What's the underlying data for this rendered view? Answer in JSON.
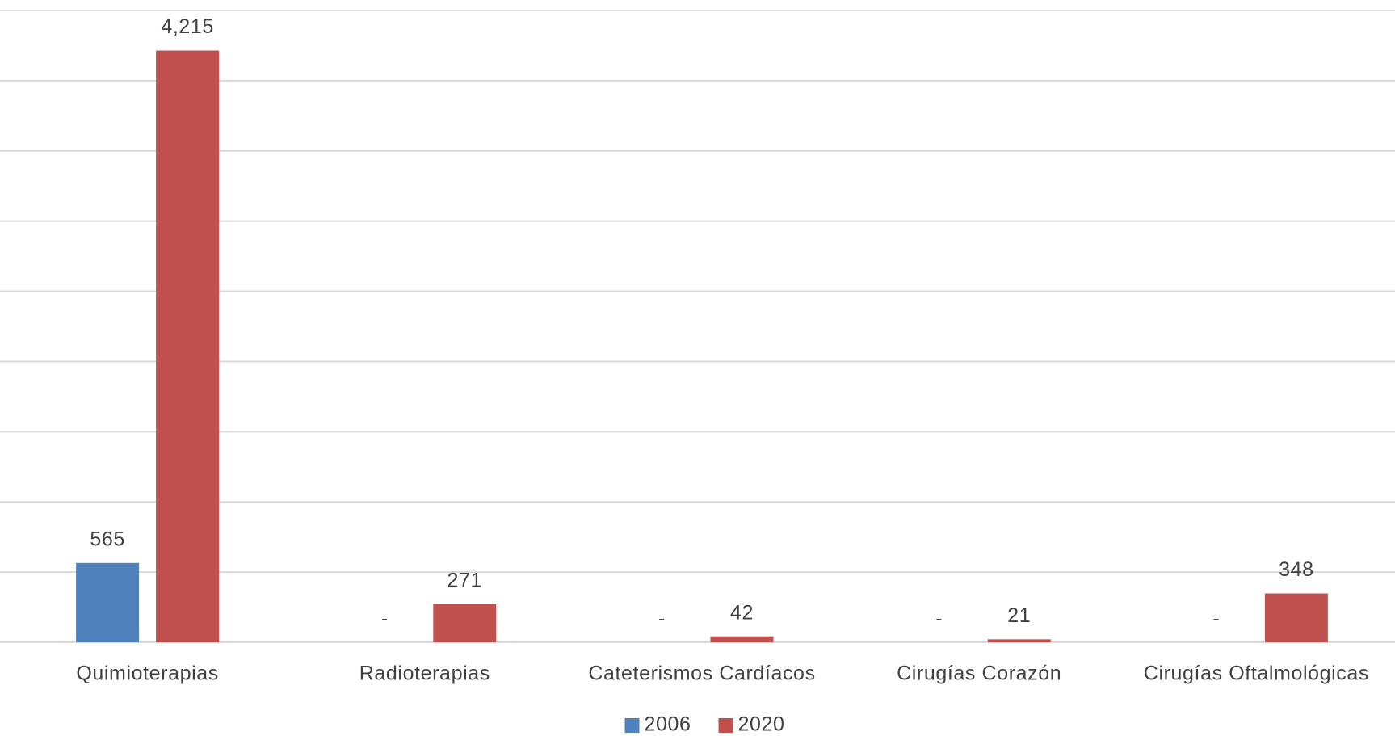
{
  "chart_data": {
    "type": "bar",
    "categories": [
      "Quimioterapias",
      "Radioterapias",
      "Cateterismos Cardíacos",
      "Cirugías Corazón",
      "Cirugías Oftalmológicas"
    ],
    "series": [
      {
        "name": "2006",
        "color": "#4f81bd",
        "values": [
          565,
          0,
          0,
          0,
          0
        ],
        "value_labels": [
          "565",
          "-",
          "-",
          "-",
          "-"
        ]
      },
      {
        "name": "2020",
        "color": "#c0504d",
        "values": [
          4215,
          271,
          42,
          21,
          348
        ],
        "value_labels": [
          "4,215",
          "271",
          "42",
          "21",
          "348"
        ]
      }
    ],
    "ylim": [
      0,
      4500
    ],
    "yticks": [
      0,
      500,
      1000,
      1500,
      2000,
      2500,
      3000,
      3500,
      4000,
      4500
    ],
    "grid": true,
    "legend": "bottom"
  }
}
